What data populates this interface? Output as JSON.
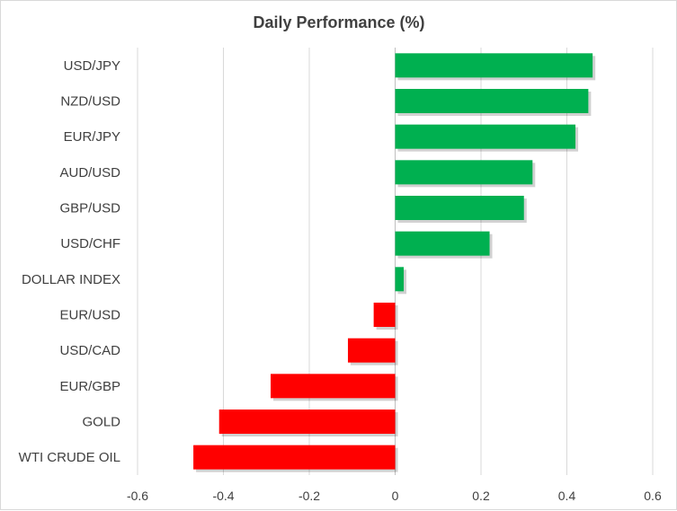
{
  "chart_data": {
    "type": "bar",
    "orientation": "horizontal",
    "title": "Daily Performance  (%)",
    "xlabel": "",
    "ylabel": "",
    "xlim": [
      -0.6,
      0.6
    ],
    "ticks": [
      -0.6,
      -0.4,
      -0.2,
      0,
      0.2,
      0.4,
      0.6
    ],
    "tick_labels": [
      "-0.6",
      "-0.4",
      "-0.2",
      "0",
      "0.2",
      "0.4",
      "0.6"
    ],
    "grid": true,
    "legend": "none",
    "categories": [
      "USD/JPY",
      "NZD/USD",
      "EUR/JPY",
      "AUD/USD",
      "GBP/USD",
      "USD/CHF",
      "DOLLAR INDEX",
      "EUR/USD",
      "USD/CAD",
      "EUR/GBP",
      "GOLD",
      "WTI CRUDE OIL"
    ],
    "values": [
      0.46,
      0.45,
      0.42,
      0.32,
      0.3,
      0.22,
      0.02,
      -0.05,
      -0.11,
      -0.29,
      -0.41,
      -0.47
    ],
    "colors": {
      "positive": "#00b050",
      "negative": "#ff0000",
      "grid": "#d9d9d9",
      "text": "#404040"
    }
  }
}
